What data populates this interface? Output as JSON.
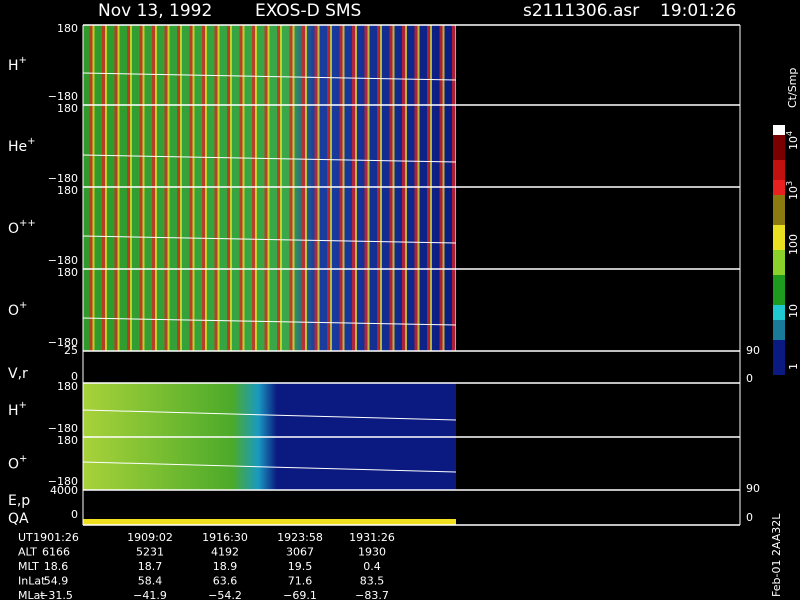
{
  "header": {
    "date": "Nov 13, 1992",
    "instrument": "EXOS-D SMS",
    "file": "s2111306.asr",
    "time": "19:01:26"
  },
  "panels": [
    {
      "label": "H",
      "charge": "+",
      "top": "180",
      "bottom": "−180"
    },
    {
      "label": "He",
      "charge": "+",
      "top": "180",
      "bottom": "−180"
    },
    {
      "label": "O",
      "charge": "++",
      "top": "180",
      "bottom": "−180"
    },
    {
      "label": "O",
      "charge": "+",
      "top": "180",
      "bottom": "−180"
    },
    {
      "label": "H",
      "charge": "+",
      "top": "180",
      "bottom": "−180"
    },
    {
      "label": "O",
      "charge": "+",
      "top": "180",
      "bottom": "−180"
    }
  ],
  "vr": {
    "label": "V,r",
    "left_top": "25",
    "left_bottom": "0",
    "right_top": "90",
    "right_bottom": "0"
  },
  "ep": {
    "label": "E,p",
    "qa": "QA",
    "left_top": "4000",
    "left_bottom": "0",
    "right_top": "90",
    "right_bottom": "0"
  },
  "colorbar": {
    "unit": "Ct/Smp",
    "ticks": [
      {
        "text": "10",
        "exp": "4"
      },
      {
        "text": "10",
        "exp": "3"
      },
      {
        "text": "100"
      },
      {
        "text": "10"
      },
      {
        "text": "1"
      }
    ]
  },
  "table": {
    "rows": [
      [
        "UT",
        "1901:26",
        "1909:02",
        "1916:30",
        "1923:58",
        "1931:26"
      ],
      [
        "ALT",
        "6166",
        "5231",
        "4192",
        "3067",
        "1930"
      ],
      [
        "MLT",
        "18.6",
        "18.7",
        "18.9",
        "19.5",
        "0.4"
      ],
      [
        "InLat",
        "54.9",
        "58.4",
        "63.6",
        "71.6",
        "83.5"
      ],
      [
        "MLat",
        "−31.5",
        "−41.9",
        "−54.2",
        "−69.1",
        "−83.7"
      ]
    ]
  },
  "footer": "Feb-01 2AA32L"
}
